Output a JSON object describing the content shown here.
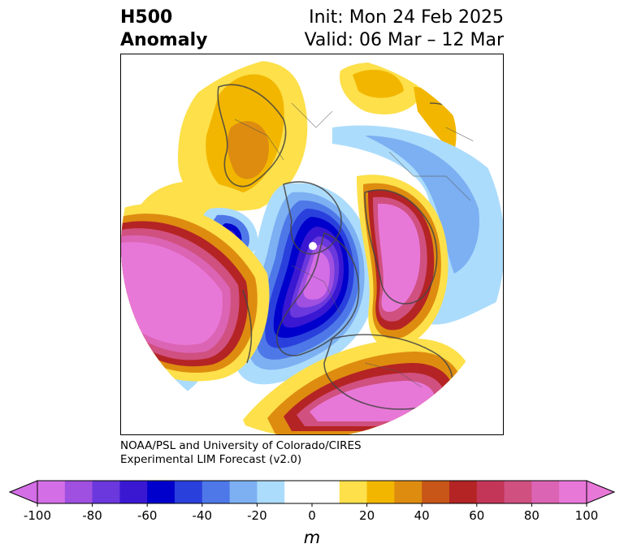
{
  "title": {
    "left_line1": "H500",
    "left_line2": "Anomaly",
    "right_line1": "Init: Mon 24 Feb 2025",
    "right_line2": "Valid: 06 Mar – 12 Mar"
  },
  "credit": {
    "line1": "NOAA/PSL and University of Colorado/CIRES",
    "line2": "Experimental LIM Forecast (v2.0)"
  },
  "colorbar": {
    "unit": "m",
    "ticks": [
      "-100",
      "-80",
      "-60",
      "-40",
      "-20",
      "0",
      "20",
      "40",
      "60",
      "80",
      "100"
    ],
    "colors": [
      "#d46ee6",
      "#9f50e0",
      "#6a38dc",
      "#3a18d2",
      "#0000cc",
      "#2a40dc",
      "#4e78e8",
      "#7cb0f2",
      "#acdcfc",
      "#ffffff",
      "#ffffff",
      "#fde04a",
      "#f2b600",
      "#de8c10",
      "#c85618",
      "#b42424",
      "#c43658",
      "#d05080",
      "#dc64b4",
      "#e878d8"
    ],
    "extend": "both"
  },
  "map": {
    "projection": "north-polar-stereographic",
    "field": "500 hPa geopotential height anomaly"
  }
}
